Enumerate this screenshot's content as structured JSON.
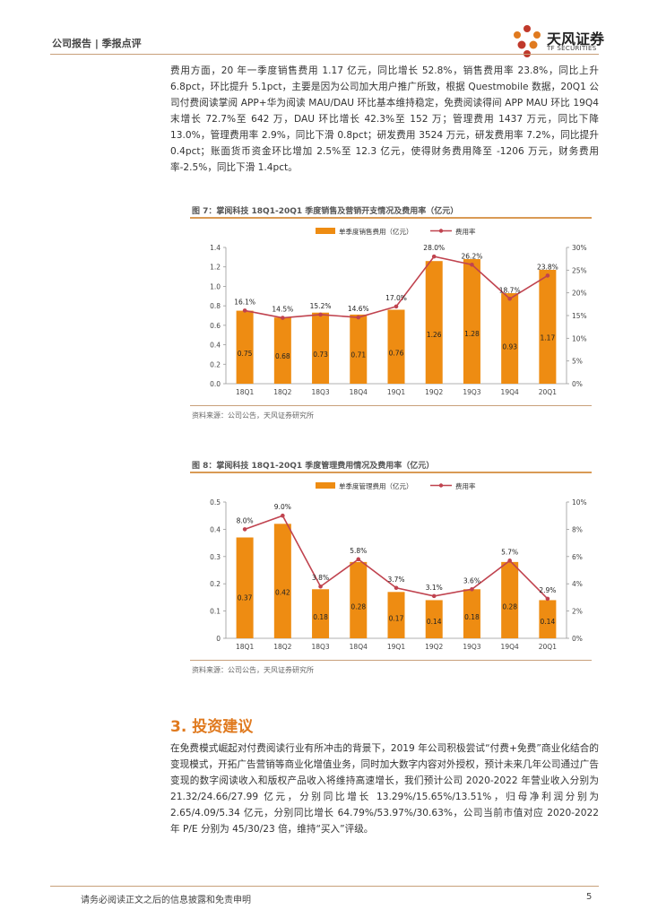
{
  "header": {
    "left": "公司报告 | 季报点评",
    "logo_name": "天风证券",
    "logo_sub": "TF SECURITIES"
  },
  "paragraph1": "费用方面，20 年一季度销售费用 1.17 亿元，同比增长 52.8%，销售费用率 23.8%，同比上升 6.8pct，环比提升 5.1pct，主要是因为公司加大用户推广所致，根据 Questmobile 数据，20Q1 公司付费阅读掌阅 APP+华为阅读 MAU/DAU 环比基本维持稳定，免费阅读得间 APP MAU 环比 19Q4 末增长 72.7%至 642 万，DAU 环比增长 42.3%至 152 万；管理费用 1437 万元，同比下降 13.0%，管理费用率 2.9%，同比下滑 0.8pct；研发费用 3524 万元，研发费用率 7.2%，同比提升 0.4pct；账面货币资金环比增加 2.5%至 12.3 亿元，使得财务费用降至 -1206 万元，财务费用率-2.5%，同比下滑 1.4pct。",
  "figure7": {
    "title": "图 7：掌阅科技 18Q1-20Q1 季度销售及营销开支情况及费用率（亿元）",
    "source": "资料来源：公司公告，天风证券研究所"
  },
  "figure8": {
    "title": "图 8：掌阅科技 18Q1-20Q1 季度管理费用情况及费用率（亿元）",
    "source": "资料来源：公司公告，天风证券研究所"
  },
  "section": {
    "title": "3. 投资建议",
    "body": "在免费模式崛起对付费阅读行业有所冲击的背景下，2019 年公司积极尝试“付费+免费”商业化结合的变现模式，开拓广告营销等商业化增值业务，同时加大数字内容对外授权，预计未来几年公司通过广告变现的数字阅读收入和版权产品收入将维持高速增长，我们预计公司 2020-2022 年营业收入分别为 21.32/24.66/27.99 亿元，分别同比增长 13.29%/15.65%/13.51%，归母净利润分别为 2.65/4.09/5.34 亿元，分别同比增长 64.79%/53.97%/30.63%，公司当前市值对应 2020-2022 年 P/E 分别为 45/30/23 倍，维持“买入”评级。"
  },
  "footer": {
    "disclaimer": "请务必阅读正文之后的信息披露和免责申明",
    "page": "5"
  },
  "colors": {
    "bar": "#ee8c12",
    "line": "#c0434f",
    "accent": "#e07a1f"
  },
  "chart_data": [
    {
      "type": "bar",
      "categories": [
        "18Q1",
        "18Q2",
        "18Q3",
        "18Q4",
        "19Q1",
        "19Q2",
        "19Q3",
        "19Q4",
        "20Q1"
      ],
      "series": [
        {
          "name": "单季度销售费用（亿元）",
          "type": "bar",
          "axis": "left",
          "values": [
            0.75,
            0.68,
            0.73,
            0.71,
            0.76,
            1.26,
            1.28,
            0.93,
            1.17
          ],
          "labels": [
            "0.75",
            "0.68",
            "0.73",
            "0.71",
            "0.76",
            "1.26",
            "1.28",
            "0.93",
            "1.17"
          ]
        },
        {
          "name": "费用率",
          "type": "line",
          "axis": "right",
          "values": [
            16.1,
            14.5,
            15.2,
            14.6,
            17.0,
            28.0,
            26.2,
            18.7,
            23.8
          ],
          "labels": [
            "16.1%",
            "14.5%",
            "15.2%",
            "14.6%",
            "17.0%",
            "28.0%",
            "26.2%",
            "18.7%",
            "23.8%"
          ]
        }
      ],
      "left_axis": {
        "min": 0,
        "max": 1.4,
        "ticks": [
          "0.0",
          "0.2",
          "0.4",
          "0.6",
          "0.8",
          "1.0",
          "1.2",
          "1.4"
        ]
      },
      "right_axis": {
        "min": 0,
        "max": 30,
        "ticks": [
          "0%",
          "5%",
          "10%",
          "15%",
          "20%",
          "25%",
          "30%"
        ]
      },
      "legend_position": "top"
    },
    {
      "type": "bar",
      "categories": [
        "18Q1",
        "18Q2",
        "18Q3",
        "18Q4",
        "19Q1",
        "19Q2",
        "19Q3",
        "19Q4",
        "20Q1"
      ],
      "series": [
        {
          "name": "单季度管理费用（亿元）",
          "type": "bar",
          "axis": "left",
          "values": [
            0.37,
            0.42,
            0.18,
            0.28,
            0.17,
            0.14,
            0.18,
            0.28,
            0.14
          ],
          "labels": [
            "0.37",
            "0.42",
            "0.18",
            "0.28",
            "0.17",
            "0.14",
            "0.18",
            "0.28",
            "0.14"
          ]
        },
        {
          "name": "费用率",
          "type": "line",
          "axis": "right",
          "values": [
            8.0,
            9.0,
            3.8,
            5.8,
            3.7,
            3.1,
            3.6,
            5.7,
            2.9
          ],
          "labels": [
            "8.0%",
            "9.0%",
            "3.8%",
            "5.8%",
            "3.7%",
            "3.1%",
            "3.6%",
            "5.7%",
            "2.9%"
          ]
        }
      ],
      "left_axis": {
        "min": 0,
        "max": 0.5,
        "ticks": [
          "0",
          "0.1",
          "0.2",
          "0.3",
          "0.4",
          "0.5"
        ]
      },
      "right_axis": {
        "min": 0,
        "max": 10,
        "ticks": [
          "0%",
          "2%",
          "4%",
          "6%",
          "8%",
          "10%"
        ]
      },
      "legend_position": "top"
    }
  ]
}
